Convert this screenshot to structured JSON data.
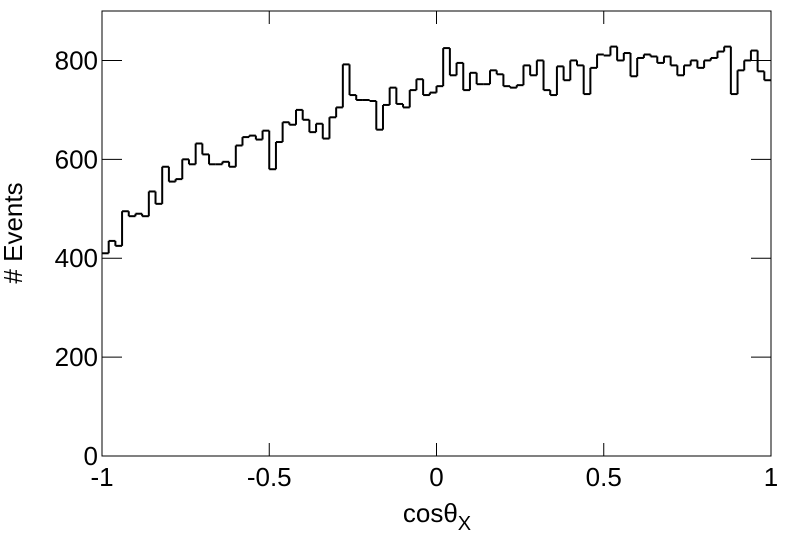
{
  "chart_data": {
    "type": "histogram",
    "xlabel": "cosθ",
    "xlabel_subscript": "X",
    "ylabel": "# Events",
    "bins": [
      -1,
      -0.98,
      -0.96,
      -0.94,
      -0.92,
      -0.9,
      -0.88,
      -0.86,
      -0.84,
      -0.82,
      -0.8,
      -0.78,
      -0.76,
      -0.74,
      -0.72,
      -0.7,
      -0.68,
      -0.66,
      -0.64,
      -0.62,
      -0.6,
      -0.58,
      -0.56,
      -0.54,
      -0.52,
      -0.5,
      -0.48,
      -0.46,
      -0.44,
      -0.42,
      -0.4,
      -0.38,
      -0.36,
      -0.34,
      -0.32,
      -0.3,
      -0.28,
      -0.26,
      -0.24,
      -0.22,
      -0.2,
      -0.18,
      -0.16,
      -0.14,
      -0.12,
      -0.1,
      -0.08,
      -0.06,
      -0.04,
      -0.02,
      0,
      0.02,
      0.04,
      0.06,
      0.08,
      0.1,
      0.12,
      0.14,
      0.16,
      0.18,
      0.2,
      0.22,
      0.24,
      0.26,
      0.28,
      0.3,
      0.32,
      0.34,
      0.36,
      0.38,
      0.4,
      0.42,
      0.44,
      0.46,
      0.48,
      0.5,
      0.52,
      0.54,
      0.56,
      0.58,
      0.6,
      0.62,
      0.64,
      0.66,
      0.68,
      0.7,
      0.72,
      0.74,
      0.76,
      0.78,
      0.8,
      0.82,
      0.84,
      0.86,
      0.88,
      0.9,
      0.92,
      0.94,
      0.96,
      0.98,
      1
    ],
    "values": [
      410,
      435,
      425,
      495,
      485,
      490,
      485,
      535,
      510,
      585,
      555,
      560,
      600,
      590,
      632,
      610,
      590,
      590,
      595,
      585,
      628,
      645,
      648,
      640,
      658,
      580,
      635,
      675,
      670,
      700,
      680,
      655,
      672,
      642,
      685,
      705,
      792,
      730,
      720,
      720,
      718,
      660,
      710,
      745,
      712,
      705,
      740,
      762,
      730,
      735,
      748,
      825,
      770,
      795,
      740,
      775,
      752,
      752,
      780,
      772,
      748,
      745,
      750,
      790,
      770,
      800,
      740,
      730,
      788,
      760,
      800,
      790,
      732,
      785,
      812,
      810,
      828,
      800,
      815,
      768,
      805,
      812,
      808,
      795,
      808,
      790,
      770,
      790,
      800,
      785,
      800,
      805,
      818,
      828,
      732,
      780,
      800,
      820,
      778,
      760
    ],
    "color": "#000000",
    "xlim": [
      -1,
      1
    ],
    "xticks": [
      -1,
      -0.5,
      0,
      0.5,
      1
    ],
    "ylim": [
      0,
      900
    ],
    "yticks": [
      0,
      200,
      400,
      600,
      800
    ]
  }
}
